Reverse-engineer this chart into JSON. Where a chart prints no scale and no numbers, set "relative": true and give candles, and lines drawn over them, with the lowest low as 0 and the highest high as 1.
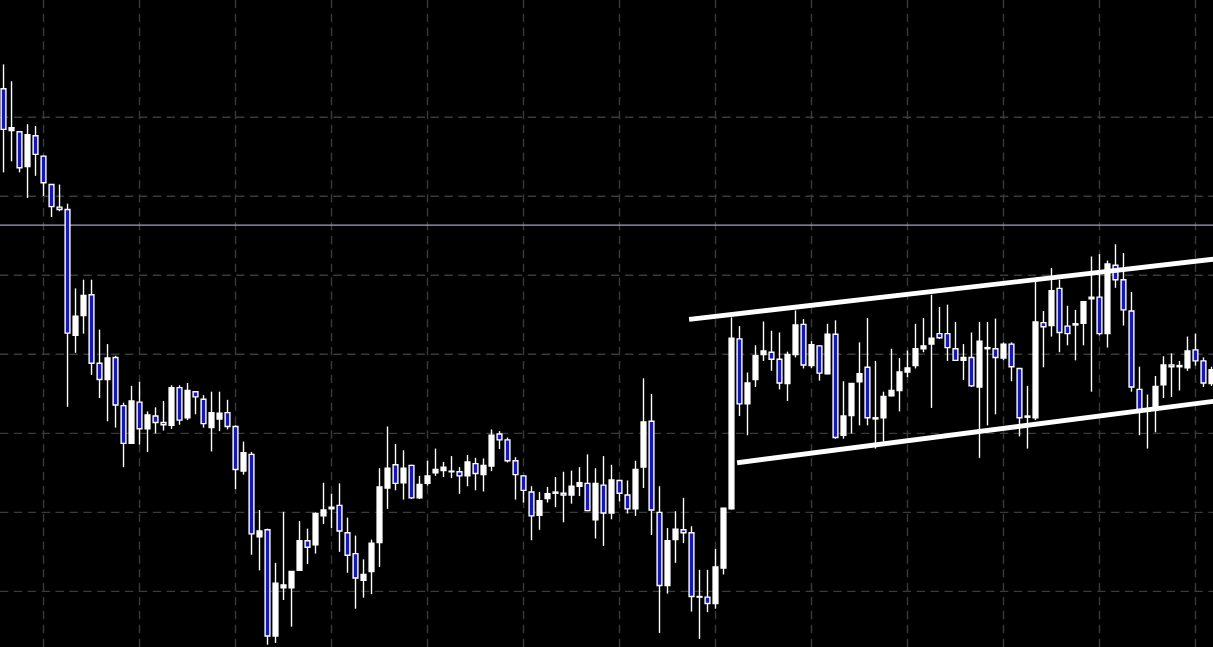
{
  "chart_data": {
    "type": "candlestick",
    "relative": true,
    "grid": true,
    "tick_labels": false,
    "categories": [
      null,
      null,
      null,
      null,
      null,
      null,
      null,
      null,
      null,
      null,
      null,
      null,
      null,
      null,
      null,
      null,
      null,
      null,
      null,
      null,
      null,
      null,
      null,
      null,
      null,
      null,
      null,
      null,
      null,
      null,
      null,
      null,
      null,
      null,
      null,
      null,
      null,
      null,
      null,
      null,
      null,
      null,
      null,
      null,
      null,
      null,
      null,
      null,
      null,
      null,
      null,
      null,
      null,
      null,
      null,
      null,
      null,
      null,
      null,
      null,
      null,
      null,
      null,
      null,
      null,
      null,
      null,
      null,
      null,
      null,
      null,
      null,
      null,
      null,
      null,
      null,
      null,
      null,
      null,
      null,
      null,
      null,
      null,
      null,
      null,
      null,
      null,
      null,
      null,
      null,
      null,
      null,
      null,
      null,
      null,
      null,
      null,
      null,
      null,
      null,
      null,
      null,
      null,
      null,
      null,
      null,
      null,
      null,
      null,
      null,
      null,
      null,
      null,
      null,
      null,
      null,
      null,
      null,
      null,
      null,
      null,
      null,
      null,
      null,
      null,
      null,
      null,
      null,
      null,
      null,
      null,
      null,
      null,
      null,
      null,
      null,
      null,
      null,
      null,
      null,
      null,
      null,
      null,
      null,
      null,
      null,
      null,
      null,
      null,
      null,
      null,
      null
    ],
    "ohlc": [
      [
        0.958,
        1.0,
        0.814,
        0.888
      ],
      [
        0.886,
        0.971,
        0.833,
        0.891
      ],
      [
        0.884,
        0.885,
        0.814,
        0.822
      ],
      [
        0.824,
        0.897,
        0.77,
        0.879
      ],
      [
        0.877,
        0.894,
        0.808,
        0.845
      ],
      [
        0.842,
        0.843,
        0.773,
        0.796
      ],
      [
        0.793,
        0.794,
        0.737,
        0.755
      ],
      [
        0.754,
        0.793,
        0.747,
        0.75
      ],
      [
        0.75,
        0.76,
        0.41,
        0.537
      ],
      [
        0.533,
        0.614,
        0.503,
        0.566
      ],
      [
        0.567,
        0.629,
        0.536,
        0.602
      ],
      [
        0.603,
        0.629,
        0.465,
        0.485
      ],
      [
        0.485,
        0.543,
        0.425,
        0.457
      ],
      [
        0.457,
        0.518,
        0.385,
        0.494
      ],
      [
        0.495,
        0.498,
        0.374,
        0.413
      ],
      [
        0.412,
        0.417,
        0.306,
        0.347
      ],
      [
        0.347,
        0.446,
        0.346,
        0.42
      ],
      [
        0.418,
        0.453,
        0.345,
        0.372
      ],
      [
        0.372,
        0.402,
        0.332,
        0.396
      ],
      [
        0.394,
        0.409,
        0.364,
        0.383
      ],
      [
        0.383,
        0.42,
        0.369,
        0.379
      ],
      [
        0.378,
        0.447,
        0.372,
        0.443
      ],
      [
        0.443,
        0.447,
        0.379,
        0.387
      ],
      [
        0.391,
        0.451,
        0.387,
        0.438
      ],
      [
        0.436,
        0.437,
        0.397,
        0.427
      ],
      [
        0.423,
        0.43,
        0.374,
        0.381
      ],
      [
        0.374,
        0.436,
        0.333,
        0.4
      ],
      [
        0.389,
        0.436,
        0.368,
        0.399
      ],
      [
        0.4,
        0.422,
        0.371,
        0.376
      ],
      [
        0.376,
        0.378,
        0.268,
        0.302
      ],
      [
        0.299,
        0.35,
        0.293,
        0.331
      ],
      [
        0.328,
        0.332,
        0.155,
        0.191
      ],
      [
        0.186,
        0.232,
        0.128,
        0.196
      ],
      [
        0.198,
        0.2,
        0.0,
        0.015
      ],
      [
        0.015,
        0.141,
        0.003,
        0.106
      ],
      [
        0.098,
        0.229,
        0.077,
        0.103
      ],
      [
        0.098,
        0.127,
        0.031,
        0.126
      ],
      [
        0.128,
        0.213,
        0.127,
        0.179
      ],
      [
        0.179,
        0.2,
        0.139,
        0.168
      ],
      [
        0.172,
        0.228,
        0.157,
        0.226
      ],
      [
        0.222,
        0.279,
        0.208,
        0.232
      ],
      [
        0.234,
        0.26,
        0.201,
        0.237
      ],
      [
        0.24,
        0.278,
        0.16,
        0.196
      ],
      [
        0.193,
        0.219,
        0.124,
        0.154
      ],
      [
        0.157,
        0.188,
        0.062,
        0.115
      ],
      [
        0.111,
        0.147,
        0.081,
        0.121
      ],
      [
        0.126,
        0.181,
        0.087,
        0.175
      ],
      [
        0.176,
        0.304,
        0.134,
        0.272
      ],
      [
        0.27,
        0.376,
        0.234,
        0.304
      ],
      [
        0.31,
        0.346,
        0.266,
        0.278
      ],
      [
        0.279,
        0.335,
        0.25,
        0.304
      ],
      [
        0.309,
        0.31,
        0.251,
        0.253
      ],
      [
        0.253,
        0.291,
        0.251,
        0.276
      ],
      [
        0.278,
        0.317,
        0.274,
        0.291
      ],
      [
        0.296,
        0.338,
        0.291,
        0.302
      ],
      [
        0.3,
        0.315,
        0.289,
        0.306
      ],
      [
        0.298,
        0.325,
        0.287,
        0.299
      ],
      [
        0.298,
        0.306,
        0.26,
        0.291
      ],
      [
        0.291,
        0.327,
        0.273,
        0.315
      ],
      [
        0.312,
        0.322,
        0.266,
        0.295
      ],
      [
        0.293,
        0.321,
        0.264,
        0.309
      ],
      [
        0.308,
        0.371,
        0.299,
        0.361
      ],
      [
        0.363,
        0.368,
        0.337,
        0.353
      ],
      [
        0.353,
        0.357,
        0.314,
        0.317
      ],
      [
        0.317,
        0.323,
        0.25,
        0.293
      ],
      [
        0.291,
        0.292,
        0.245,
        0.266
      ],
      [
        0.263,
        0.273,
        0.18,
        0.222
      ],
      [
        0.223,
        0.263,
        0.198,
        0.248
      ],
      [
        0.252,
        0.272,
        0.245,
        0.26
      ],
      [
        0.261,
        0.289,
        0.237,
        0.263
      ],
      [
        0.261,
        0.298,
        0.211,
        0.258
      ],
      [
        0.258,
        0.3,
        0.243,
        0.273
      ],
      [
        0.273,
        0.306,
        0.256,
        0.279
      ],
      [
        0.278,
        0.328,
        0.23,
        0.231
      ],
      [
        0.215,
        0.304,
        0.183,
        0.278
      ],
      [
        0.275,
        0.325,
        0.17,
        0.227
      ],
      [
        0.227,
        0.31,
        0.216,
        0.284
      ],
      [
        0.283,
        0.284,
        0.247,
        0.261
      ],
      [
        0.258,
        0.283,
        0.226,
        0.234
      ],
      [
        0.234,
        0.317,
        0.222,
        0.302
      ],
      [
        0.306,
        0.459,
        0.27,
        0.384
      ],
      [
        0.385,
        0.432,
        0.189,
        0.232
      ],
      [
        0.228,
        0.273,
        0.02,
        0.102
      ],
      [
        0.102,
        0.201,
        0.088,
        0.179
      ],
      [
        0.181,
        0.23,
        0.141,
        0.199
      ],
      [
        0.198,
        0.253,
        0.175,
        0.193
      ],
      [
        0.193,
        0.204,
        0.057,
        0.083
      ],
      [
        0.082,
        0.129,
        0.01,
        0.083
      ],
      [
        0.082,
        0.129,
        0.056,
        0.071
      ],
      [
        0.071,
        0.165,
        0.062,
        0.134
      ],
      [
        0.132,
        0.236,
        0.121,
        0.235
      ],
      [
        0.234,
        0.564,
        0.233,
        0.528
      ],
      [
        0.527,
        0.549,
        0.394,
        0.415
      ],
      [
        0.415,
        0.469,
        0.361,
        0.451
      ],
      [
        0.457,
        0.516,
        0.444,
        0.498
      ],
      [
        0.5,
        0.557,
        0.489,
        0.506
      ],
      [
        0.504,
        0.541,
        0.472,
        0.492
      ],
      [
        0.492,
        0.538,
        0.44,
        0.451
      ],
      [
        0.45,
        0.505,
        0.42,
        0.5
      ],
      [
        0.5,
        0.576,
        0.495,
        0.551
      ],
      [
        0.552,
        0.561,
        0.476,
        0.482
      ],
      [
        0.481,
        0.523,
        0.477,
        0.517
      ],
      [
        0.515,
        0.516,
        0.455,
        0.468
      ],
      [
        0.467,
        0.553,
        0.466,
        0.535
      ],
      [
        0.535,
        0.559,
        0.355,
        0.357
      ],
      [
        0.361,
        0.454,
        0.355,
        0.394
      ],
      [
        0.395,
        0.451,
        0.364,
        0.45
      ],
      [
        0.453,
        0.521,
        0.378,
        0.467
      ],
      [
        0.478,
        0.563,
        0.378,
        0.391
      ],
      [
        0.389,
        0.489,
        0.338,
        0.391
      ],
      [
        0.391,
        0.436,
        0.35,
        0.428
      ],
      [
        0.429,
        0.51,
        0.428,
        0.438
      ],
      [
        0.438,
        0.494,
        0.402,
        0.47
      ],
      [
        0.47,
        0.507,
        0.461,
        0.477
      ],
      [
        0.481,
        0.553,
        0.476,
        0.51
      ],
      [
        0.51,
        0.563,
        0.504,
        0.515
      ],
      [
        0.518,
        0.603,
        0.408,
        0.528
      ],
      [
        0.536,
        0.582,
        0.527,
        0.529
      ],
      [
        0.536,
        0.586,
        0.489,
        0.512
      ],
      [
        0.51,
        0.556,
        0.489,
        0.49
      ],
      [
        0.49,
        0.518,
        0.456,
        0.495
      ],
      [
        0.495,
        0.538,
        0.444,
        0.446
      ],
      [
        0.444,
        0.556,
        0.322,
        0.523
      ],
      [
        0.51,
        0.556,
        0.378,
        0.512
      ],
      [
        0.51,
        0.562,
        0.397,
        0.495
      ],
      [
        0.494,
        0.521,
        0.49,
        0.518
      ],
      [
        0.518,
        0.521,
        0.454,
        0.479
      ],
      [
        0.476,
        0.477,
        0.359,
        0.391
      ],
      [
        0.392,
        0.446,
        0.338,
        0.394
      ],
      [
        0.391,
        0.625,
        0.387,
        0.556
      ],
      [
        0.555,
        0.575,
        0.478,
        0.548
      ],
      [
        0.55,
        0.649,
        0.531,
        0.61
      ],
      [
        0.614,
        0.629,
        0.504,
        0.538
      ],
      [
        0.549,
        0.584,
        0.516,
        0.536
      ],
      [
        0.551,
        0.577,
        0.49,
        0.553
      ],
      [
        0.554,
        0.592,
        0.516,
        0.591
      ],
      [
        0.596,
        0.669,
        0.436,
        0.599
      ],
      [
        0.599,
        0.673,
        0.533,
        0.536
      ],
      [
        0.536,
        0.662,
        0.512,
        0.656
      ],
      [
        0.654,
        0.69,
        0.615,
        0.629
      ],
      [
        0.629,
        0.675,
        0.55,
        0.577
      ],
      [
        0.575,
        0.608,
        0.436,
        0.444
      ],
      [
        0.44,
        0.479,
        0.361,
        0.405
      ],
      [
        0.405,
        0.431,
        0.338,
        0.404
      ],
      [
        0.407,
        0.463,
        0.366,
        0.445
      ],
      [
        0.448,
        0.497,
        0.425,
        0.482
      ],
      [
        0.482,
        0.502,
        0.427,
        0.479
      ],
      [
        0.479,
        0.489,
        0.438,
        0.481
      ],
      [
        0.477,
        0.531,
        0.472,
        0.506
      ],
      [
        0.508,
        0.536,
        0.481,
        0.489
      ],
      [
        0.489,
        0.495,
        0.444,
        0.451
      ],
      [
        0.45,
        0.479,
        0.446,
        0.474
      ]
    ],
    "colors": [
      "#1414c8",
      "#ffffff",
      "#1414c8",
      "#ffffff",
      "#1414c8",
      "#1414c8",
      "#1414c8",
      "#1414c8",
      "#1414c8",
      "#ffffff",
      "#ffffff",
      "#1414c8",
      "#1414c8",
      "#ffffff",
      "#1414c8",
      "#1414c8",
      "#ffffff",
      "#1414c8",
      "#ffffff",
      "#1414c8",
      "#1414c8",
      "#ffffff",
      "#1414c8",
      "#ffffff",
      "#1414c8",
      "#1414c8",
      "#ffffff",
      "#ffffff",
      "#1414c8",
      "#1414c8",
      "#ffffff",
      "#1414c8",
      "#ffffff",
      "#1414c8",
      "#ffffff",
      "#ffffff",
      "#ffffff",
      "#ffffff",
      "#1414c8",
      "#ffffff",
      "#ffffff",
      "#ffffff",
      "#1414c8",
      "#1414c8",
      "#1414c8",
      "#ffffff",
      "#ffffff",
      "#ffffff",
      "#ffffff",
      "#1414c8",
      "#ffffff",
      "#1414c8",
      "#ffffff",
      "#ffffff",
      "#ffffff",
      "#ffffff",
      "#ffffff",
      "#1414c8",
      "#ffffff",
      "#1414c8",
      "#ffffff",
      "#ffffff",
      "#1414c8",
      "#1414c8",
      "#1414c8",
      "#1414c8",
      "#1414c8",
      "#ffffff",
      "#ffffff",
      "#ffffff",
      "#1414c8",
      "#ffffff",
      "#ffffff",
      "#1414c8",
      "#ffffff",
      "#1414c8",
      "#ffffff",
      "#1414c8",
      "#1414c8",
      "#ffffff",
      "#ffffff",
      "#1414c8",
      "#1414c8",
      "#ffffff",
      "#ffffff",
      "#1414c8",
      "#1414c8",
      "#ffffff",
      "#1414c8",
      "#ffffff",
      "#ffffff",
      "#ffffff",
      "#1414c8",
      "#ffffff",
      "#ffffff",
      "#ffffff",
      "#1414c8",
      "#1414c8",
      "#ffffff",
      "#ffffff",
      "#1414c8",
      "#ffffff",
      "#1414c8",
      "#ffffff",
      "#1414c8",
      "#ffffff",
      "#ffffff",
      "#ffffff",
      "#1414c8",
      "#ffffff",
      "#ffffff",
      "#ffffff",
      "#ffffff",
      "#ffffff",
      "#ffffff",
      "#ffffff",
      "#ffffff",
      "#1414c8",
      "#1414c8",
      "#1414c8",
      "#ffffff",
      "#1414c8",
      "#ffffff",
      "#ffffff",
      "#1414c8",
      "#ffffff",
      "#1414c8",
      "#1414c8",
      "#ffffff",
      "#ffffff",
      "#1414c8",
      "#ffffff",
      "#1414c8",
      "#1414c8",
      "#ffffff",
      "#ffffff",
      "#ffffff",
      "#1414c8",
      "#ffffff",
      "#1414c8",
      "#1414c8",
      "#1414c8",
      "#1414c8",
      "#1414c8",
      "#ffffff",
      "#ffffff",
      "#1414c8",
      "#ffffff",
      "#ffffff",
      "#1414c8",
      "#1414c8",
      "#ffffff"
    ],
    "series": [
      {
        "type": "line",
        "color": "#ffffff",
        "values": [
          null,
          null,
          null,
          null,
          null,
          null,
          null,
          null,
          null,
          null,
          null,
          null,
          null,
          null,
          null,
          null,
          null,
          null,
          null,
          null,
          null,
          null,
          null,
          null,
          null,
          null,
          null,
          null,
          null,
          null,
          null,
          null,
          null,
          null,
          null,
          null,
          null,
          null,
          null,
          null,
          null,
          null,
          null,
          null,
          null,
          null,
          null,
          null,
          null,
          null,
          null,
          null,
          null,
          null,
          null,
          null,
          null,
          null,
          null,
          null,
          null,
          null,
          null,
          null,
          null,
          null,
          null,
          null,
          null,
          null,
          null,
          null,
          null,
          null,
          null,
          null,
          null,
          null,
          null,
          null,
          null,
          null,
          null,
          null,
          null,
          null,
          0.561,
          null,
          null,
          null,
          null,
          null,
          null,
          null,
          null,
          null,
          null,
          null,
          null,
          null,
          null,
          null,
          null,
          null,
          null,
          null,
          null,
          null,
          null,
          null,
          null,
          null,
          null,
          null,
          null,
          null,
          null,
          null,
          null,
          null,
          null,
          null,
          null,
          null,
          null,
          null,
          null,
          null,
          null,
          null,
          null,
          null,
          null,
          null,
          null,
          null,
          null,
          null,
          null,
          null,
          null,
          null,
          null,
          null,
          null,
          null,
          null,
          null,
          null,
          null,
          null,
          0.664
        ]
      },
      {
        "type": "line",
        "color": "#ffffff",
        "values": [
          null,
          null,
          null,
          null,
          null,
          null,
          null,
          null,
          null,
          null,
          null,
          null,
          null,
          null,
          null,
          null,
          null,
          null,
          null,
          null,
          null,
          null,
          null,
          null,
          null,
          null,
          null,
          null,
          null,
          null,
          null,
          null,
          null,
          null,
          null,
          null,
          null,
          null,
          null,
          null,
          null,
          null,
          null,
          null,
          null,
          null,
          null,
          null,
          null,
          null,
          null,
          null,
          null,
          null,
          null,
          null,
          null,
          null,
          null,
          null,
          null,
          null,
          null,
          null,
          null,
          null,
          null,
          null,
          null,
          null,
          null,
          null,
          null,
          null,
          null,
          null,
          null,
          null,
          null,
          null,
          null,
          null,
          null,
          null,
          null,
          null,
          null,
          null,
          null,
          null,
          null,
          null,
          0.314,
          null,
          null,
          null,
          null,
          null,
          null,
          null,
          null,
          null,
          null,
          null,
          null,
          null,
          null,
          null,
          null,
          null,
          null,
          null,
          null,
          null,
          null,
          null,
          null,
          null,
          null,
          null,
          null,
          null,
          null,
          null,
          null,
          null,
          null,
          null,
          null,
          null,
          null,
          null,
          null,
          null,
          null,
          null,
          null,
          null,
          null,
          null,
          null,
          null,
          null,
          null,
          null,
          null,
          null,
          null,
          null,
          null,
          null,
          0.419
        ]
      }
    ],
    "ref_lines": [
      {
        "axis": "y",
        "value": 0.723,
        "color": "#a0a4c0"
      }
    ]
  }
}
